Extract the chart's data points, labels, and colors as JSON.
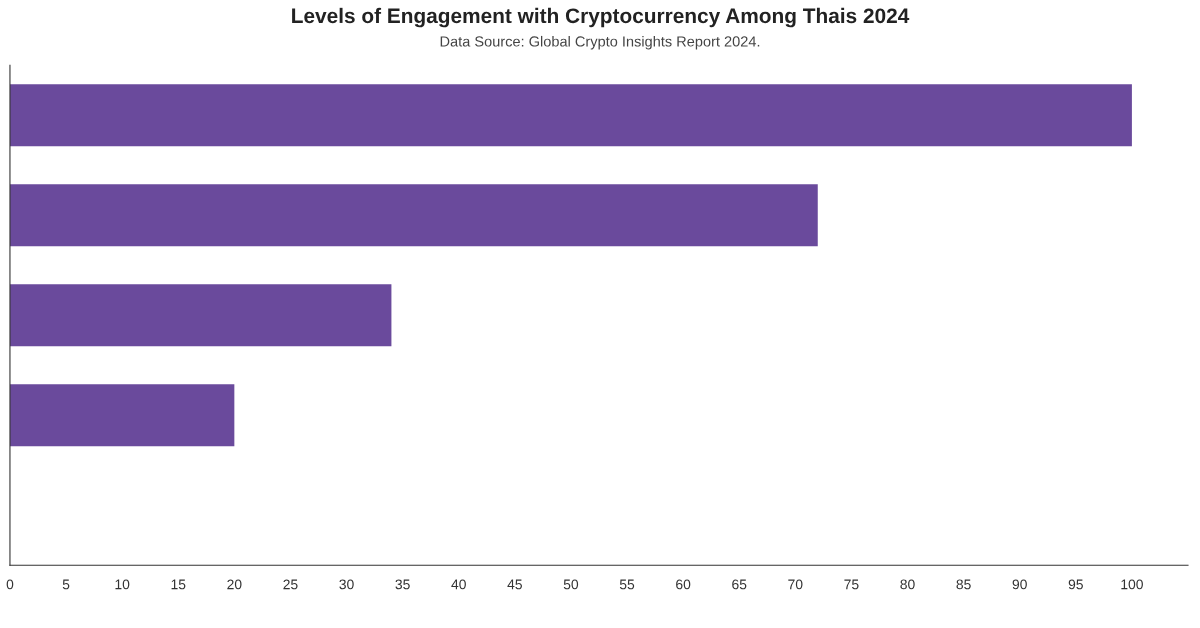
{
  "chart_data": {
    "type": "bar",
    "orientation": "horizontal",
    "title": "Levels of Engagement with Cryptocurrency Among Thais 2024",
    "subtitle": "Data Source: Global Crypto Insights Report 2024.",
    "categories": [
      null,
      null,
      null,
      null,
      null
    ],
    "values": [
      100,
      72,
      34,
      20,
      null
    ],
    "color": "#6a4a9c",
    "xlim": [
      0,
      105
    ],
    "xticks": [
      0,
      5,
      10,
      15,
      20,
      25,
      30,
      35,
      40,
      45,
      50,
      55,
      60,
      65,
      70,
      75,
      80,
      85,
      90,
      95,
      100
    ],
    "grid": false,
    "legend": false
  }
}
